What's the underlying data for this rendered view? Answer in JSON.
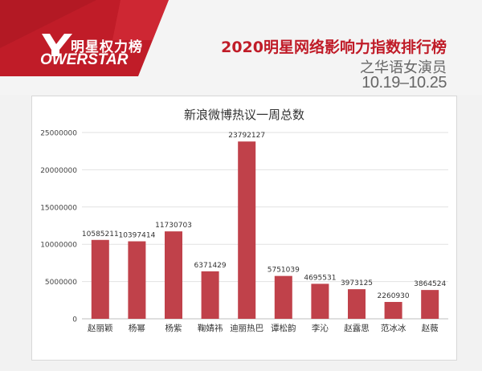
{
  "header": {
    "logo_cn": "明星权力榜",
    "logo_en": "OWERSTAR",
    "title": "2020明星网络影响力指数排行榜",
    "subtitle": "之华语女演员",
    "date_range": "10.19–10.25"
  },
  "colors": {
    "brand_red": "#c01c28",
    "bar": "#c0414a",
    "grid": "#e2e2e2"
  },
  "chart_data": {
    "type": "bar",
    "title": "新浪微博热议一周总数",
    "categories": [
      "赵丽颖",
      "杨幂",
      "杨紫",
      "鞠婧祎",
      "迪丽热巴",
      "谭松韵",
      "李沁",
      "赵露思",
      "范冰冰",
      "赵薇"
    ],
    "values": [
      10585211,
      10397414,
      11730703,
      6371429,
      23792127,
      5751039,
      4695531,
      3973125,
      2260930,
      3864524
    ],
    "ylim": [
      0,
      25000000
    ],
    "yticks": [
      "0",
      "5000000",
      "10000000",
      "15000000",
      "20000000",
      "25000000"
    ],
    "data_labels": [
      "10585211",
      "10397414",
      "11730703",
      "6371429",
      "23792127",
      "5751039",
      "4695531",
      "3973125",
      "2260930",
      "3864524"
    ],
    "grid": true
  }
}
